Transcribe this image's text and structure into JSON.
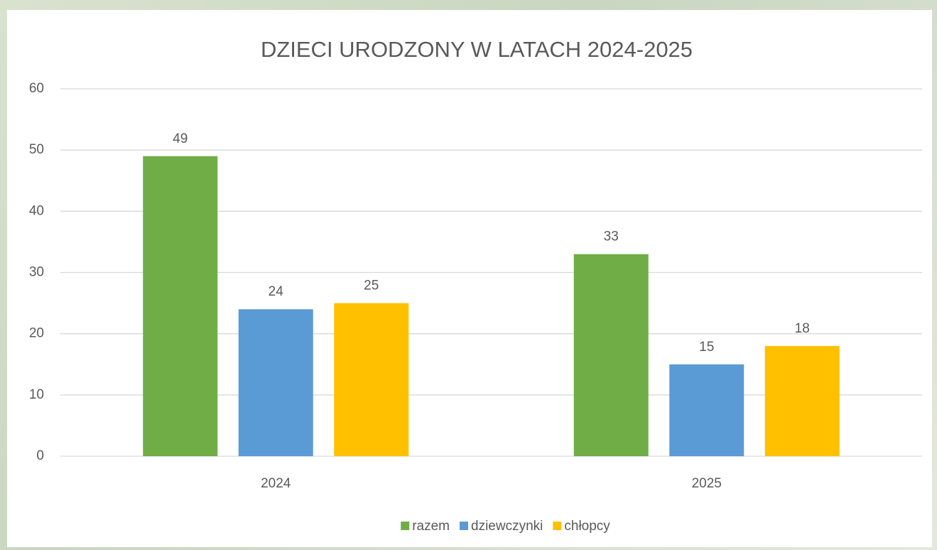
{
  "chart_data": {
    "type": "bar",
    "title": "DZIECI URODZONY W LATACH 2024-2025",
    "categories": [
      "2024",
      "2025"
    ],
    "series": [
      {
        "name": "razem",
        "color": "#70ad47",
        "values": [
          49,
          33
        ]
      },
      {
        "name": "dziewczynki",
        "color": "#5b9bd5",
        "values": [
          24,
          15
        ]
      },
      {
        "name": "chłopcy",
        "color": "#ffc000",
        "values": [
          25,
          18
        ]
      }
    ],
    "ylim": [
      0,
      60
    ],
    "yticks": [
      0,
      10,
      20,
      30,
      40,
      50,
      60
    ],
    "grid": true,
    "legend": "bottom"
  }
}
